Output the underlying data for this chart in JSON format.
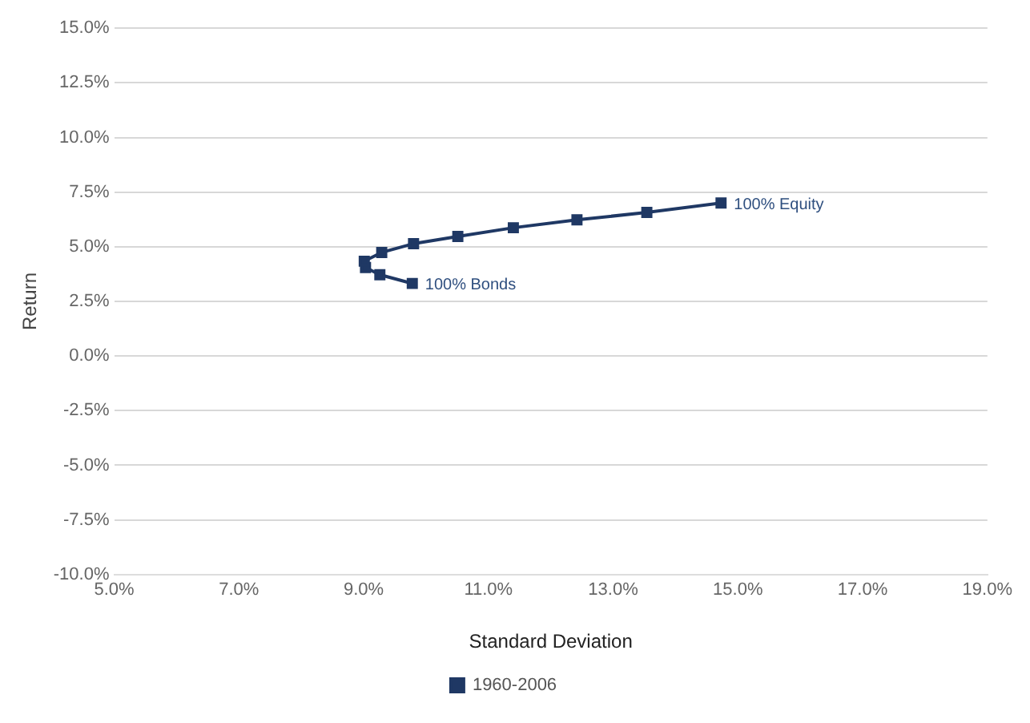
{
  "chart_data": {
    "type": "line",
    "xlabel": "Standard Deviation",
    "ylabel": "Return",
    "xlim": [
      5,
      19
    ],
    "xticks": [
      {
        "value": 5,
        "label": "5.0%"
      },
      {
        "value": 7,
        "label": "7.0%"
      },
      {
        "value": 9,
        "label": "9.0%"
      },
      {
        "value": 11,
        "label": "11.0%"
      },
      {
        "value": 13,
        "label": "13.0%"
      },
      {
        "value": 15,
        "label": "15.0%"
      },
      {
        "value": 17,
        "label": "17.0%"
      },
      {
        "value": 19,
        "label": "19.0%"
      }
    ],
    "ylim": [
      -10,
      15
    ],
    "yticks": [
      {
        "value": -10,
        "label": "-10.0%"
      },
      {
        "value": -7.5,
        "label": "-7.5%"
      },
      {
        "value": -5,
        "label": "-5.0%"
      },
      {
        "value": -2.5,
        "label": "-2.5%"
      },
      {
        "value": 0,
        "label": "0.0%"
      },
      {
        "value": 2.5,
        "label": "2.5%"
      },
      {
        "value": 5,
        "label": "5.0%"
      },
      {
        "value": 7.5,
        "label": "7.5%"
      },
      {
        "value": 10,
        "label": "10.0%"
      },
      {
        "value": 12.5,
        "label": "12.5%"
      },
      {
        "value": 15,
        "label": "15.0%"
      }
    ],
    "grid": "y",
    "legend": "bottom",
    "marker": "square",
    "line_style": "solid",
    "series": [
      {
        "name": "1960-2006",
        "color": "#1f3864",
        "x": [
          9.78,
          9.26,
          9.03,
          9.01,
          9.29,
          9.8,
          10.51,
          11.4,
          12.42,
          13.54,
          14.73
        ],
        "values": [
          3.32,
          3.72,
          4.05,
          4.34,
          4.74,
          5.14,
          5.47,
          5.87,
          6.23,
          6.57,
          7.0
        ]
      }
    ],
    "annotations": [
      {
        "text": "100% Equity",
        "x": 14.73,
        "y": 7.0
      },
      {
        "text": "100% Bonds",
        "x": 9.78,
        "y": 3.32
      }
    ]
  }
}
